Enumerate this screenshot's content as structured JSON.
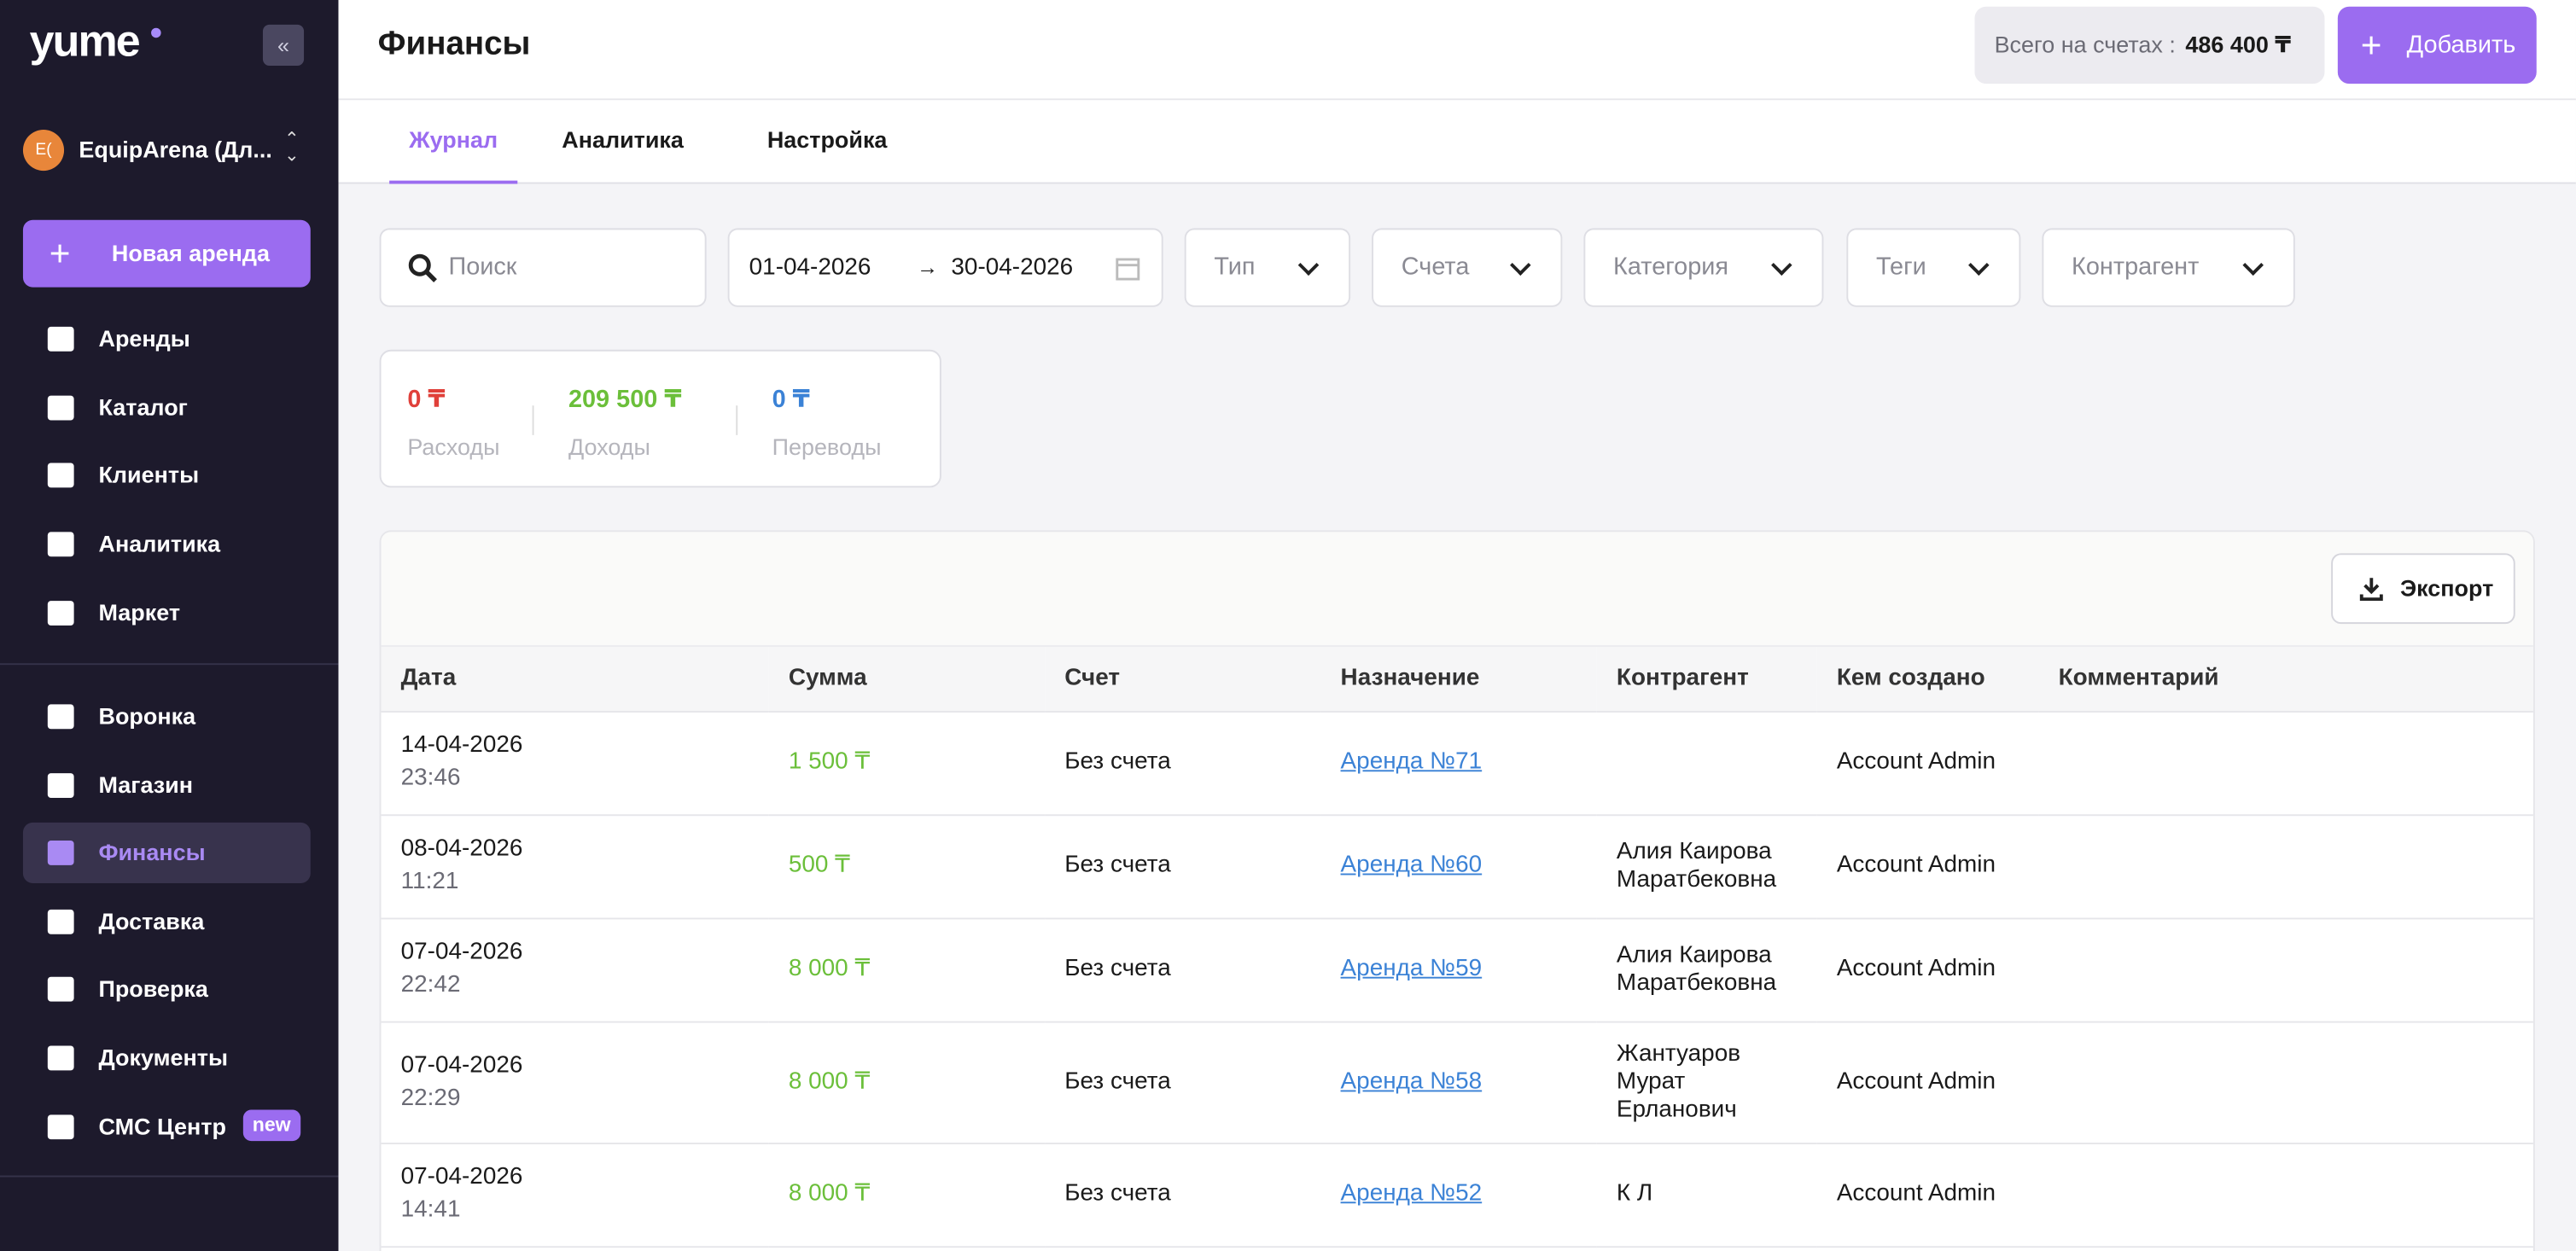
{
  "sidebar": {
    "logo": "yume",
    "workspace": {
      "initials": "E(",
      "name": "EquipArena (Дл..."
    },
    "new_button": "Новая аренда",
    "menu": [
      "Аренды",
      "Каталог",
      "Клиенты",
      "Аналитика",
      "Маркет"
    ],
    "menu2": [
      "Воронка",
      "Магазин",
      "Финансы",
      "Доставка",
      "Проверка",
      "Документы",
      "СМС Центр"
    ],
    "active": "Финансы",
    "badge": "new"
  },
  "header": {
    "title": "Финансы",
    "total_label": "Всего на счетах :",
    "total_value": "486 400 ₸",
    "add_button": "Добавить"
  },
  "tabs": [
    "Журнал",
    "Аналитика",
    "Настройка"
  ],
  "filters": {
    "search": "Поиск",
    "date_from": "01-04-2026",
    "date_to": "30-04-2026",
    "selects": [
      "Тип",
      "Счета",
      "Категория",
      "Теги",
      "Контрагент"
    ]
  },
  "summary": [
    {
      "value": "0 ₸",
      "label": "Расходы",
      "color": "#e0403a"
    },
    {
      "value": "209 500 ₸",
      "label": "Доходы",
      "color": "#6bbf3a"
    },
    {
      "value": "0 ₸",
      "label": "Переводы",
      "color": "#3b82d6"
    }
  ],
  "export": "Экспорт",
  "table": {
    "columns": [
      "Дата",
      "Сумма",
      "Счет",
      "Назначение",
      "Контрагент",
      "Кем создано",
      "Комментарий"
    ],
    "rows": [
      {
        "date": "14-04-2026",
        "time": "23:46",
        "amount": "1 500 ₸",
        "account": "Без счета",
        "purpose": "Аренда №71",
        "creator": "Account Admin"
      },
      {
        "date": "08-04-2026",
        "time": "11:21",
        "amount": "500 ₸",
        "account": "Без счета",
        "purpose": "Аренда №60",
        "contragent": "Алия Каирова Маратбековна",
        "creator": "Account Admin"
      },
      {
        "date": "07-04-2026",
        "time": "22:42",
        "amount": "8 000 ₸",
        "account": "Без счета",
        "purpose": "Аренда №59",
        "contragent": "Алия Каирова Маратбековна",
        "creator": "Account Admin"
      },
      {
        "date": "07-04-2026",
        "time": "22:29",
        "amount": "8 000 ₸",
        "account": "Без счета",
        "purpose": "Аренда №58",
        "contragent": "Жантуаров Мурат Ерланович",
        "creator": "Account Admin"
      },
      {
        "date": "07-04-2026",
        "time": "14:41",
        "amount": "8 000 ₸",
        "account": "Без счета",
        "purpose": "Аренда №52",
        "contragent": "К Л",
        "creator": "Account Admin"
      }
    ]
  }
}
